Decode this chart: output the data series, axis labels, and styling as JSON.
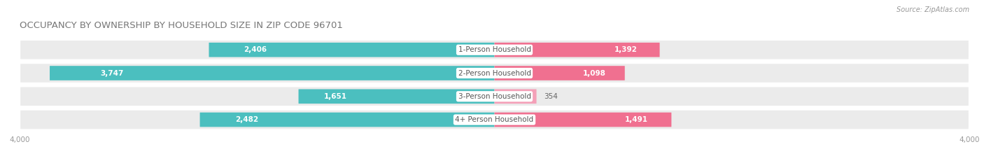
{
  "title": "OCCUPANCY BY OWNERSHIP BY HOUSEHOLD SIZE IN ZIP CODE 96701",
  "source": "Source: ZipAtlas.com",
  "categories": [
    "1-Person Household",
    "2-Person Household",
    "3-Person Household",
    "4+ Person Household"
  ],
  "owner_values": [
    2406,
    3747,
    1651,
    2482
  ],
  "renter_values": [
    1392,
    1098,
    354,
    1491
  ],
  "owner_color": "#4BBFBF",
  "renter_color": "#F07090",
  "renter_color_light": "#F4A0B8",
  "bar_bg_color": "#EBEBEB",
  "x_max": 4000,
  "background_color": "#FFFFFF",
  "bar_height": 0.62,
  "title_fontsize": 9.5,
  "source_fontsize": 7,
  "axis_fontsize": 7.5,
  "label_fontsize": 7.5,
  "category_fontsize": 7.5
}
